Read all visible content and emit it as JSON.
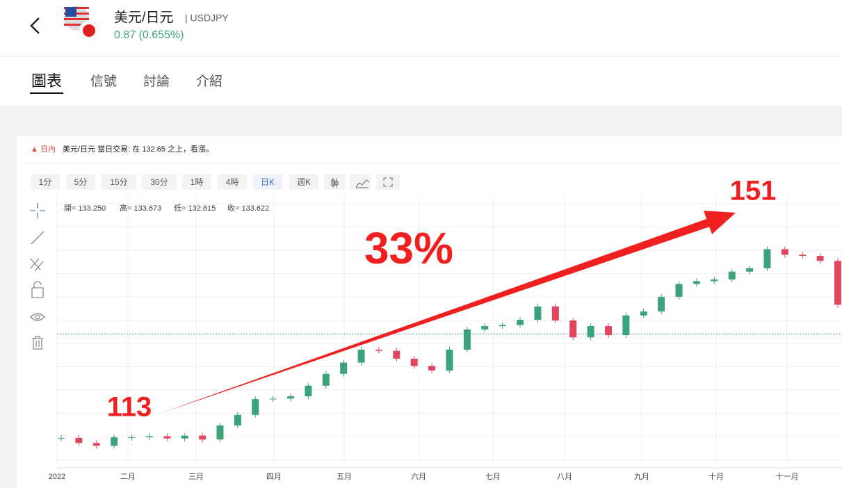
{
  "header": {
    "title": "美元/日元",
    "symbol": "| USDJPY",
    "change": "0.87 (0.655%)"
  },
  "tabs": [
    "圖表",
    "信號",
    "討論",
    "介紹"
  ],
  "alert": {
    "tag": "▲ 日內",
    "text": "美元/日元 當日交易: 在 132.65 之上，看漲。"
  },
  "timeframes": [
    "1分",
    "5分",
    "15分",
    "30分",
    "1時",
    "4時",
    "日K",
    "週K"
  ],
  "ohlc": [
    "開= 133.250",
    "高= 133.673",
    "低= 132.815",
    "收= 133.622"
  ],
  "chart_data": {
    "type": "candlestick",
    "open": [
      115.0,
      115.1,
      114.2,
      113.7,
      115.2,
      115.2,
      115.4,
      115.0,
      115.5,
      114.8,
      117.3,
      119.2,
      122.0,
      122.1,
      122.5,
      124.4,
      126.5,
      128.5,
      130.8,
      130.6,
      129.2,
      127.9,
      127.1,
      130.8,
      134.4,
      135.0,
      135.2,
      136.1,
      138.5,
      136.0,
      133.0,
      135.0,
      133.4,
      136.9,
      137.6,
      140.2,
      142.5,
      143.0,
      143.3,
      144.7,
      145.3,
      148.7,
      147.7,
      147.5,
      146.6
    ],
    "close": [
      115.1,
      114.2,
      113.7,
      115.2,
      115.2,
      115.4,
      115.0,
      115.5,
      114.8,
      117.3,
      119.2,
      122.0,
      122.1,
      122.5,
      124.4,
      126.5,
      128.5,
      130.8,
      130.6,
      129.2,
      127.9,
      127.1,
      130.8,
      134.4,
      135.0,
      135.2,
      136.1,
      138.5,
      136.0,
      133.0,
      135.0,
      133.4,
      136.9,
      137.6,
      140.2,
      142.5,
      143.0,
      143.3,
      144.7,
      145.3,
      148.7,
      147.7,
      147.5,
      146.6,
      138.8
    ],
    "up_color": "#3aa37a",
    "down_color": "#e0475e",
    "ylim": [
      110.76,
      158.4
    ],
    "last_price": 133.622,
    "x_labels": [
      "2022",
      "二月",
      "三月",
      "四月",
      "五月",
      "六月",
      "七月",
      "八月",
      "九月",
      "十月",
      "十一月"
    ],
    "annotations": {
      "start": "113",
      "end": "151",
      "change": "33%"
    }
  }
}
